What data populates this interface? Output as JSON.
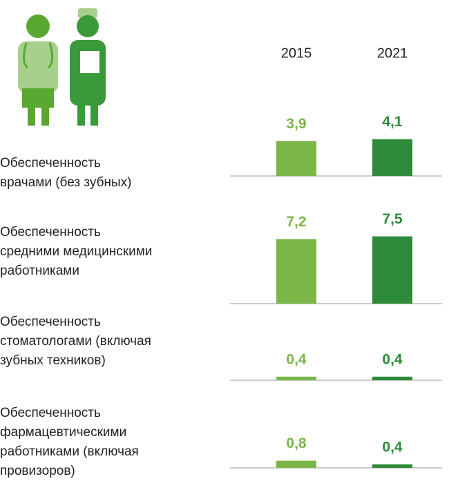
{
  "chart_data": {
    "type": "bar",
    "categories": [
      "Обеспеченность\nврачами (без зубных)",
      "Обеспеченность\nсредними медицинскими\nработниками",
      "Обеспеченность\nстоматологами (включая\nзубных техников)",
      "Обеспеченность\nфармацевтическими\nработниками (включая\nпровизоров)"
    ],
    "series": [
      {
        "name": "2015",
        "color": "#7ab648",
        "values": [
          3.9,
          7.2,
          0.4,
          0.8
        ],
        "value_labels": [
          "3,9",
          "7,2",
          "0,4",
          "0,8"
        ]
      },
      {
        "name": "2021",
        "color": "#2e8b3a",
        "values": [
          4.1,
          7.5,
          0.4,
          0.4
        ],
        "value_labels": [
          "4,1",
          "7,5",
          "0,4",
          "0,4"
        ]
      }
    ]
  }
}
